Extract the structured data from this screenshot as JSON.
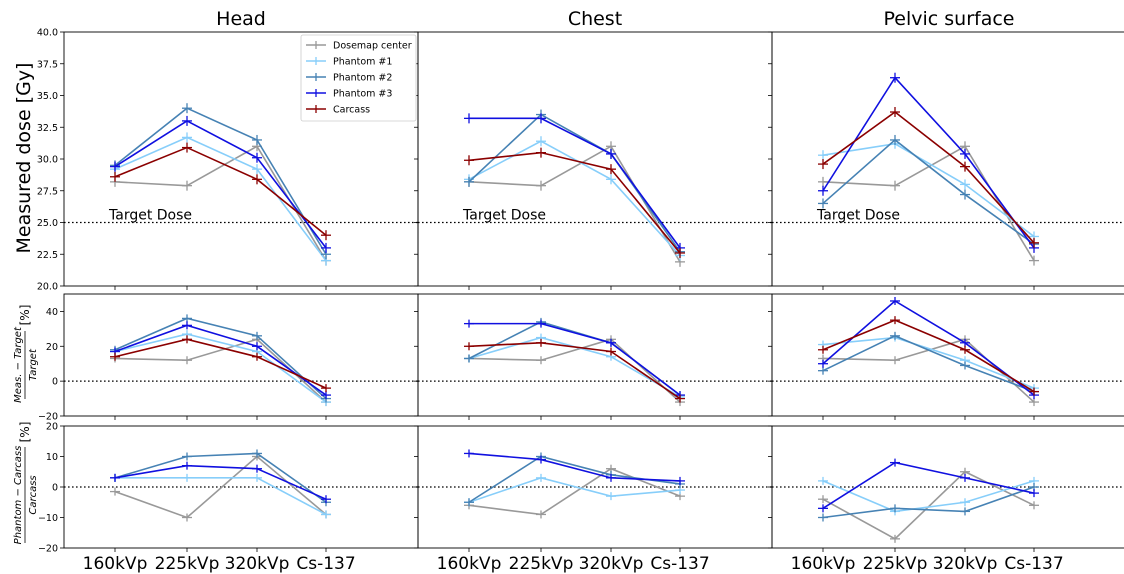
{
  "figure": {
    "column_titles": [
      "Head",
      "Chest",
      "Pelvic surface"
    ],
    "target_label": "Target Dose",
    "ylabels": {
      "dose": "Measured dose [Gy]",
      "rel_target_num": "Meas. − Target",
      "rel_target_den": "Target",
      "rel_target_unit": "[%]",
      "rel_carcass_num": "Phantom − Carcass",
      "rel_carcass_den": "Carcass",
      "rel_carcass_unit": "[%]"
    }
  },
  "chart_data": {
    "type": "line",
    "categories": [
      "160kVp",
      "225kVp",
      "320kVp",
      "Cs-137"
    ],
    "legend": {
      "placement": "inside top of Head dose panel",
      "entries": [
        "Dosemap center",
        "Phantom #1",
        "Phantom #2",
        "Phantom #3",
        "Carcass"
      ]
    },
    "series_style": [
      {
        "name": "Dosemap center",
        "color": "#999999"
      },
      {
        "name": "Phantom #1",
        "color": "#87cefa"
      },
      {
        "name": "Phantom #2",
        "color": "#4682b4"
      },
      {
        "name": "Phantom #3",
        "color": "#1010e0"
      },
      {
        "name": "Carcass",
        "color": "#8b0000"
      }
    ],
    "rows": [
      {
        "key": "dose",
        "ylim": [
          20,
          40
        ],
        "yticks": [
          "20.0",
          "22.5",
          "25.0",
          "27.5",
          "30.0",
          "32.5",
          "35.0",
          "37.5",
          "40.0"
        ],
        "ytick_values": [
          20,
          22.5,
          25,
          27.5,
          30,
          32.5,
          35,
          37.5,
          40
        ],
        "reference_line": 25
      },
      {
        "key": "rel_target",
        "ylim": [
          -20,
          50
        ],
        "yticks": [
          "−20",
          "0",
          "20",
          "40"
        ],
        "ytick_values": [
          -20,
          0,
          20,
          40
        ],
        "reference_line": 0
      },
      {
        "key": "rel_carcass",
        "ylim": [
          -20,
          20
        ],
        "yticks": [
          "−20",
          "−10",
          "0",
          "10",
          "20"
        ],
        "ytick_values": [
          -20,
          -10,
          0,
          10,
          20
        ],
        "reference_line": 0
      }
    ],
    "panels": [
      {
        "title": "Head",
        "dose": {
          "Dosemap center": [
            28.2,
            27.9,
            31.0,
            22.0
          ],
          "Phantom #1": [
            29.2,
            31.7,
            29.2,
            22.0
          ],
          "Phantom #2": [
            29.5,
            34.0,
            31.5,
            22.5
          ],
          "Phantom #3": [
            29.4,
            33.0,
            30.1,
            23.0
          ],
          "Carcass": [
            28.6,
            30.9,
            28.4,
            24.0
          ]
        },
        "rel_target": {
          "Dosemap center": [
            13,
            12,
            24,
            -12
          ],
          "Phantom #1": [
            17,
            27,
            17,
            -12
          ],
          "Phantom #2": [
            18,
            36,
            26,
            -10
          ],
          "Phantom #3": [
            17,
            32,
            20,
            -8
          ],
          "Carcass": [
            14,
            24,
            14,
            -4
          ]
        },
        "rel_carcass": {
          "Dosemap center": [
            -1.5,
            -10,
            10,
            -9
          ],
          "Phantom #1": [
            3,
            3,
            3,
            -9
          ],
          "Phantom #2": [
            3,
            10,
            11,
            -5
          ],
          "Phantom #3": [
            3,
            7,
            6,
            -4
          ]
        }
      },
      {
        "title": "Chest",
        "dose": {
          "Dosemap center": [
            28.2,
            27.9,
            31.0,
            21.9
          ],
          "Phantom #1": [
            28.4,
            31.4,
            28.4,
            22.4
          ],
          "Phantom #2": [
            28.2,
            33.5,
            30.4,
            22.7
          ],
          "Phantom #3": [
            33.2,
            33.2,
            30.4,
            23.0
          ],
          "Carcass": [
            29.9,
            30.5,
            29.2,
            22.6
          ]
        },
        "rel_target": {
          "Dosemap center": [
            13,
            12,
            24,
            -12
          ],
          "Phantom #1": [
            13,
            25,
            14,
            -9
          ],
          "Phantom #2": [
            13,
            34,
            22,
            -8
          ],
          "Phantom #3": [
            33,
            33,
            22,
            -8
          ],
          "Carcass": [
            20,
            22,
            17,
            -10
          ]
        },
        "rel_carcass": {
          "Dosemap center": [
            -6,
            -9,
            6,
            -3
          ],
          "Phantom #1": [
            -5,
            3,
            -3,
            -1
          ],
          "Phantom #2": [
            -5,
            10,
            4,
            1
          ],
          "Phantom #3": [
            11,
            9,
            3,
            2
          ]
        }
      },
      {
        "title": "Pelvic surface",
        "dose": {
          "Dosemap center": [
            28.2,
            27.9,
            31.0,
            22.0
          ],
          "Phantom #1": [
            30.3,
            31.2,
            28.0,
            23.9
          ],
          "Phantom #2": [
            26.5,
            31.5,
            27.2,
            23.3
          ],
          "Phantom #3": [
            27.5,
            36.4,
            30.4,
            23.0
          ],
          "Carcass": [
            29.6,
            33.7,
            29.4,
            23.4
          ]
        },
        "rel_target": {
          "Dosemap center": [
            13,
            12,
            24,
            -12
          ],
          "Phantom #1": [
            21,
            25,
            12,
            -4
          ],
          "Phantom #2": [
            6,
            26,
            9,
            -6
          ],
          "Phantom #3": [
            10,
            46,
            22,
            -8
          ],
          "Carcass": [
            18,
            35,
            18,
            -6
          ]
        },
        "rel_carcass": {
          "Dosemap center": [
            -4,
            -17,
            5,
            -6
          ],
          "Phantom #1": [
            2,
            -8,
            -5,
            2
          ],
          "Phantom #2": [
            -10,
            -7,
            -8,
            0
          ],
          "Phantom #3": [
            -7,
            8,
            3,
            -2
          ]
        }
      }
    ]
  }
}
